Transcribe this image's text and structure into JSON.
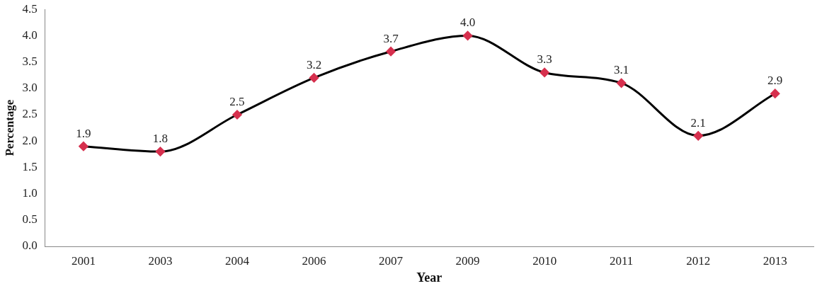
{
  "chart_data": {
    "type": "line",
    "xlabel": "Year",
    "ylabel": "Percentage",
    "categories": [
      "2001",
      "2003",
      "2004",
      "2006",
      "2007",
      "2009",
      "2010",
      "2011",
      "2012",
      "2013"
    ],
    "series": [
      {
        "color": "#000000",
        "colors": [
          "#d6304e",
          "#d6304e",
          "#d6304e",
          "#d6304e",
          "#d6304e",
          "#d6304e",
          "#d6304e",
          "#d6304e",
          "#d6304e",
          "#d6304e"
        ],
        "values": [
          1.9,
          1.8,
          2.5,
          3.2,
          3.7,
          4.0,
          3.3,
          3.1,
          2.1,
          2.9
        ],
        "value_labels": [
          "1.9",
          "1.8",
          "2.5",
          "3.2",
          "3.7",
          "4.0",
          "3.3",
          "3.1",
          "2.1",
          "2.9"
        ]
      }
    ],
    "ylim": [
      0,
      4.5
    ],
    "yticks": [
      {
        "value": 0,
        "label": "0.0"
      },
      {
        "value": 0.5,
        "label": "0.5"
      },
      {
        "value": 1,
        "label": "1.0"
      },
      {
        "value": 1.5,
        "label": "1.5"
      },
      {
        "value": 2,
        "label": "2.0"
      },
      {
        "value": 2.5,
        "label": "2.5"
      },
      {
        "value": 3,
        "label": "3.0"
      },
      {
        "value": 3.5,
        "label": "3.5"
      },
      {
        "value": 4,
        "label": "4.0"
      },
      {
        "value": 4.5,
        "label": "4.5"
      }
    ],
    "grid": false,
    "legend": false,
    "marker": "diamond",
    "line_style": "solid"
  }
}
